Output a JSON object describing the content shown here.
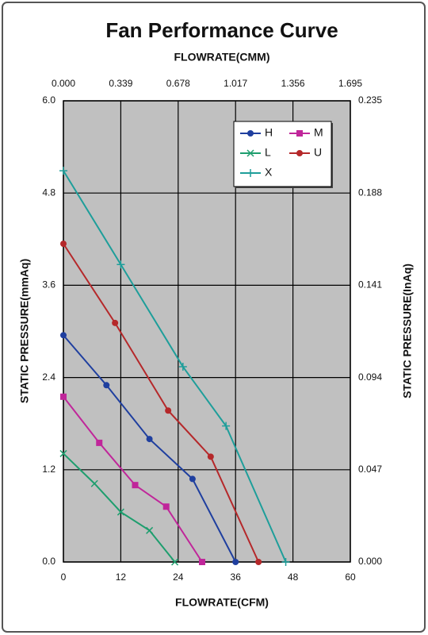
{
  "chart_data": {
    "type": "line",
    "title": "Fan Performance Curve",
    "xlabel": "FLOWRATE(CFM)",
    "x2label": "FLOWRATE(CMM)",
    "ylabel": "STATIC PRESSURE(mmAq)",
    "y2label": "STATIC PRESSURE(InAq)",
    "xlim": [
      0,
      60
    ],
    "xticks": [
      0,
      12,
      24,
      36,
      48,
      60
    ],
    "x2lim": [
      0,
      1.695
    ],
    "x2ticks": [
      {
        "value": 0,
        "label": "0.000"
      },
      0.339,
      0.678,
      1.017,
      1.356,
      1.695
    ],
    "ylim": [
      0,
      6
    ],
    "yticks": [
      {
        "value": 0,
        "label": "0.0"
      },
      1.2,
      2.4,
      3.6,
      4.8,
      {
        "value": 6,
        "label": "6.0"
      }
    ],
    "y2lim": [
      0,
      0.235
    ],
    "y2ticks": [
      {
        "value": 0,
        "label": "0.000"
      },
      0.047,
      0.094,
      0.141,
      0.188,
      0.235
    ],
    "grid": true,
    "legend": "upper right",
    "series": [
      {
        "name": "H",
        "color": "#1f3f9f",
        "marker": "circle",
        "x": [
          0,
          9,
          18,
          27,
          36
        ],
        "values": [
          2.95,
          2.3,
          1.6,
          1.08,
          0
        ]
      },
      {
        "name": "M",
        "color": "#c0269a",
        "marker": "square",
        "x": [
          0,
          7.5,
          15,
          21.5,
          29
        ],
        "values": [
          2.15,
          1.55,
          1.0,
          0.72,
          0
        ]
      },
      {
        "name": "L",
        "color": "#1e9e6e",
        "marker": "x",
        "x": [
          0,
          6.5,
          12,
          18,
          23.3
        ],
        "values": [
          1.41,
          1.02,
          0.65,
          0.41,
          0
        ]
      },
      {
        "name": "U",
        "color": "#b5282a",
        "marker": "circle",
        "x": [
          0,
          10.8,
          21.9,
          30.8,
          40.8
        ],
        "values": [
          4.14,
          3.11,
          1.97,
          1.37,
          0
        ]
      },
      {
        "name": "X",
        "color": "#1e9e9a",
        "marker": "plus",
        "x": [
          0,
          12,
          25,
          34,
          46.5
        ],
        "values": [
          5.09,
          3.87,
          2.54,
          1.77,
          0
        ]
      }
    ]
  }
}
